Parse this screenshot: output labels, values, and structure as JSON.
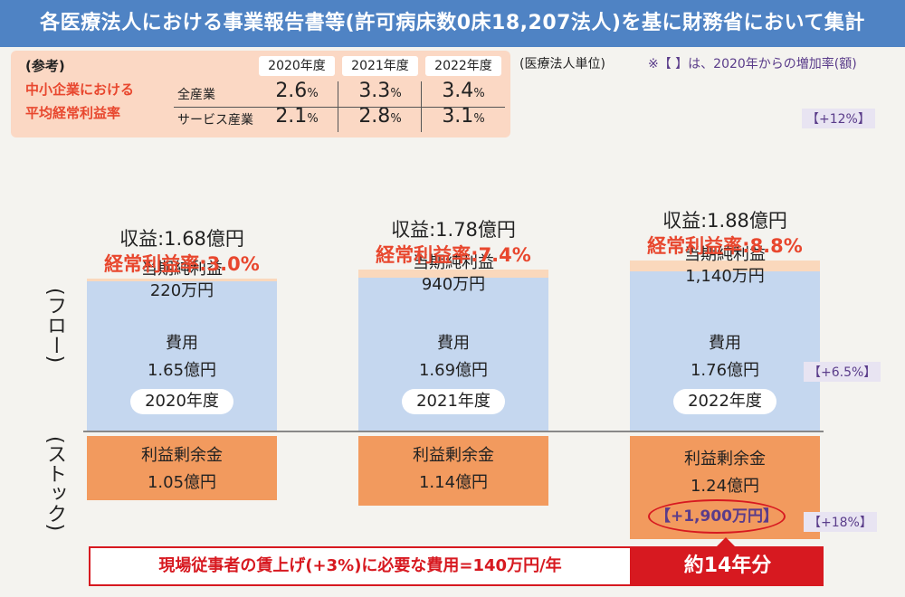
{
  "title": "各医療法人における事業報告書等(許可病床数0床18,207法人)を基に財務省において集計",
  "reference": {
    "tag": "(参考)",
    "heading_line1": "中小企業における",
    "heading_line2": "平均経常利益率",
    "years": [
      "2020年度",
      "2021年度",
      "2022年度"
    ],
    "rows": [
      {
        "label": "全産業",
        "values": [
          "2.6",
          "3.3",
          "3.4"
        ]
      },
      {
        "label": "サービス産業",
        "values": [
          "2.1",
          "2.8",
          "3.1"
        ]
      }
    ],
    "unit": "%"
  },
  "note_unit": "(医療法人単位)",
  "note_increase": "※【 】は、2020年からの増加率(額)",
  "side_labels": {
    "flow": "(フロー)",
    "stock": "(ストック)"
  },
  "chart_data": {
    "type": "bar",
    "categories": [
      "2020年度",
      "2021年度",
      "2022年度"
    ],
    "series": [
      {
        "name": "費用",
        "values": [
          1.65,
          1.69,
          1.76
        ],
        "unit": "億円",
        "labels": [
          "1.65億円",
          "1.69億円",
          "1.76億円"
        ]
      },
      {
        "name": "当期純利益",
        "values": [
          220,
          940,
          1140
        ],
        "unit": "万円",
        "labels": [
          "220万円",
          "940万円",
          "1,140万円"
        ]
      },
      {
        "name": "利益剰余金",
        "values": [
          1.05,
          1.14,
          1.24
        ],
        "unit": "億円",
        "labels": [
          "1.05億円",
          "1.14億円",
          "1.24億円"
        ]
      }
    ],
    "revenue": {
      "values": [
        1.68,
        1.78,
        1.88
      ],
      "labels": [
        "収益:1.68億円",
        "収益:1.78億円",
        "収益:1.88億円"
      ]
    },
    "ordinary_profit_margin": {
      "values": [
        3.0,
        7.4,
        8.8
      ],
      "labels": [
        "経常利益率:3.0%",
        "経常利益率:7.4%",
        "経常利益率:8.8%"
      ]
    },
    "increase_rates": {
      "revenue": "【+12%】",
      "cost": "【+6.5%】",
      "retained": "【+18%】",
      "retained_amount": "【+1,900万円】"
    }
  },
  "wage_note": "現場従事者の賃上げ(+3%)に必要な費用=140万円/年",
  "years_covered": "約14年分",
  "colors": {
    "title_bg": "#4f83c4",
    "net_income": "#fad8bc",
    "cost": "#c5d7ef",
    "retained": "#f29a5e",
    "accent_red": "#d71920",
    "accent_purple": "#5a3c8a"
  }
}
